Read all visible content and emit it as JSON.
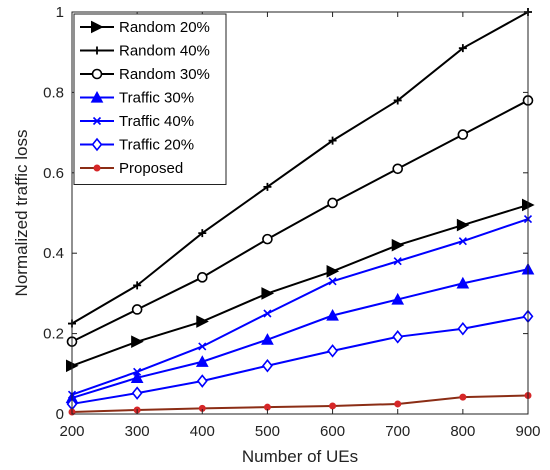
{
  "chart_data": {
    "type": "line",
    "title": "",
    "xlabel": "Number of UEs",
    "ylabel": "Normalized traffic loss",
    "xlim": [
      200,
      900
    ],
    "ylim": [
      0,
      1
    ],
    "x": [
      200,
      300,
      400,
      500,
      600,
      700,
      800,
      900
    ],
    "xticks": [
      "200",
      "300",
      "400",
      "500",
      "600",
      "700",
      "800",
      "900"
    ],
    "yticks": [
      "0",
      "0.2",
      "0.4",
      "0.6",
      "0.8",
      "1"
    ],
    "grid": false,
    "legend_position": "top-left",
    "series": [
      {
        "name": "Random 20%",
        "color": "#000000",
        "marker": "triangle-right",
        "values": [
          0.12,
          0.18,
          0.23,
          0.3,
          0.355,
          0.42,
          0.47,
          0.52
        ]
      },
      {
        "name": "Random 40%",
        "color": "#000000",
        "marker": "plus",
        "values": [
          0.225,
          0.32,
          0.45,
          0.565,
          0.68,
          0.78,
          0.91,
          1.0
        ]
      },
      {
        "name": "Random 30%",
        "color": "#000000",
        "marker": "circle",
        "values": [
          0.18,
          0.26,
          0.34,
          0.435,
          0.525,
          0.61,
          0.695,
          0.78
        ]
      },
      {
        "name": "Traffic 30%",
        "color": "#0000ff",
        "marker": "triangle-up",
        "values": [
          0.04,
          0.09,
          0.13,
          0.185,
          0.245,
          0.285,
          0.325,
          0.36
        ]
      },
      {
        "name": "Traffic 40%",
        "color": "#0000ff",
        "marker": "x",
        "values": [
          0.048,
          0.105,
          0.168,
          0.25,
          0.33,
          0.38,
          0.43,
          0.485
        ]
      },
      {
        "name": "Traffic 20%",
        "color": "#0000ff",
        "marker": "diamond",
        "values": [
          0.025,
          0.052,
          0.082,
          0.12,
          0.157,
          0.192,
          0.212,
          0.243
        ]
      },
      {
        "name": "Proposed",
        "color": "#d62728",
        "line_color": "#8b2d15",
        "marker": "dot",
        "values": [
          0.005,
          0.01,
          0.014,
          0.017,
          0.02,
          0.025,
          0.042,
          0.046
        ]
      }
    ]
  }
}
